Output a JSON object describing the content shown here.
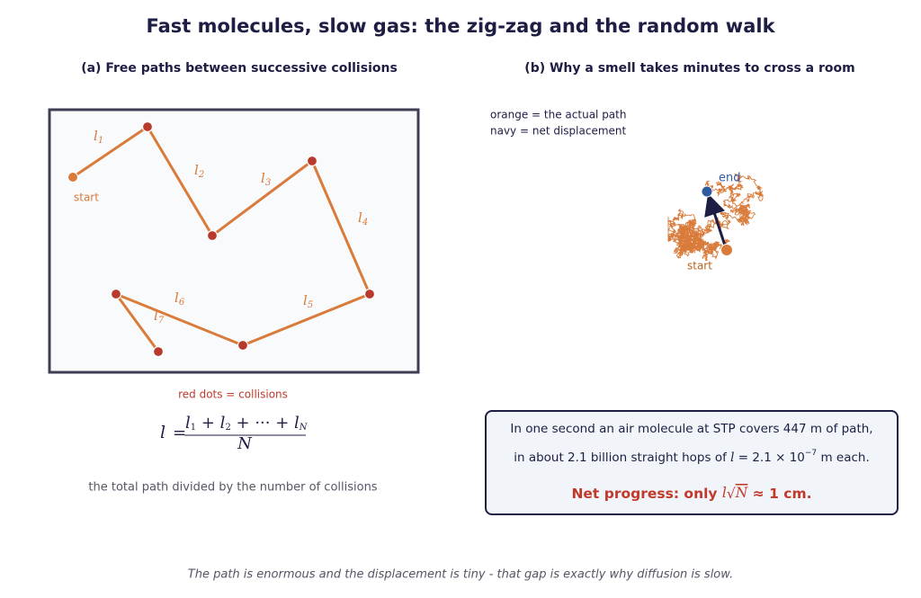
{
  "title": "Fast molecules, slow gas: the zig-zag and the random walk",
  "panel_a": {
    "title": "(a) Free paths between successive collisions",
    "start_label": "start",
    "segments": [
      {
        "symbol": "l",
        "index": "1"
      },
      {
        "symbol": "l",
        "index": "2"
      },
      {
        "symbol": "l",
        "index": "3"
      },
      {
        "symbol": "l",
        "index": "4"
      },
      {
        "symbol": "l",
        "index": "5"
      },
      {
        "symbol": "l",
        "index": "6"
      },
      {
        "symbol": "l",
        "index": "7"
      }
    ],
    "note": "red dots = collisions",
    "formula": {
      "lhs": "l",
      "equals": "=",
      "numerator": [
        "l",
        "1",
        " + ",
        "l",
        "2",
        " + ··· + ",
        "l",
        "N"
      ],
      "denominator": "N"
    },
    "caption": "the total path divided by the number of collisions"
  },
  "panel_b": {
    "title": "(b) Why a smell takes minutes to cross a room",
    "legend": [
      "orange = the actual path",
      "navy = net displacement"
    ],
    "end_label": "end",
    "start_label": "start"
  },
  "info_box": {
    "line1": "In one second an air molecule at STP covers 447 m of path,",
    "line2": [
      "in about 2.1 billion straight hops of ",
      "l",
      " = 2.1 × 10",
      "−7",
      " m each."
    ],
    "line3": [
      "Net progress: only ",
      "l",
      "√",
      "N",
      " ≈ ",
      "1 cm."
    ]
  },
  "footer": "The path is enormous and the displacement is tiny - that gap is exactly why diffusion is slow."
}
